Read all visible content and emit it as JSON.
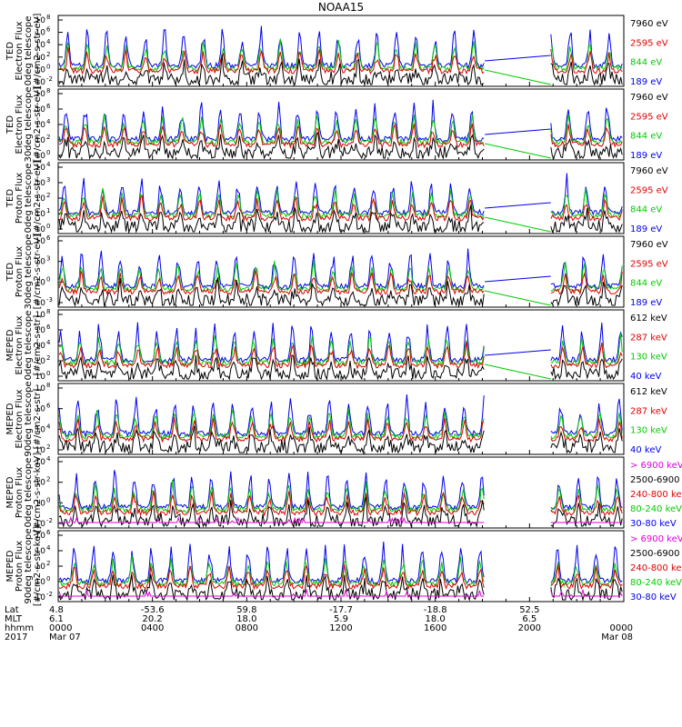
{
  "title": "NOAA15",
  "colors": {
    "blue": "#0000ee",
    "red": "#e00000",
    "green": "#00cc00",
    "black": "#000000",
    "magenta": "#e000e0"
  },
  "chart_data": [
    {
      "type": "line",
      "ylabel": [
        "TED",
        "Electron Flux",
        "0deg telescope",
        "[#/cm2-s-str-eV]"
      ],
      "ytick_exponents": [
        "8",
        "6",
        "4",
        "2",
        "0",
        "-2"
      ],
      "legend": [
        {
          "name": "7960 eV",
          "color": "black"
        },
        {
          "name": "2595 eV",
          "color": "red"
        },
        {
          "name": "844 eV",
          "color": "green"
        },
        {
          "name": "189 eV",
          "color": "blue"
        }
      ],
      "ylim": [
        "1e-2",
        "1e8"
      ],
      "base_level": 2,
      "baseline_link": true
    },
    {
      "type": "line",
      "ylabel": [
        "TED",
        "Electron Flux",
        "30deg telescope",
        "[#/cm2-s-str-eV]"
      ],
      "ytick_exponents": [
        "8",
        "6",
        "4",
        "2",
        "0"
      ],
      "legend": [
        {
          "name": "7960 eV",
          "color": "black"
        },
        {
          "name": "2595 eV",
          "color": "red"
        },
        {
          "name": "844 eV",
          "color": "green"
        },
        {
          "name": "189 eV",
          "color": "blue"
        }
      ],
      "ylim": [
        "1e0",
        "1e8"
      ],
      "base_level": 2,
      "baseline_link": true
    },
    {
      "type": "line",
      "ylabel": [
        "TED",
        "Proton Flux",
        "0deg telescope",
        "[#/cm2-s-str-eV]"
      ],
      "ytick_exponents": [
        "4",
        "3",
        "2",
        "1",
        "0"
      ],
      "legend": [
        {
          "name": "7960 eV",
          "color": "black"
        },
        {
          "name": "2595 eV",
          "color": "red"
        },
        {
          "name": "844 eV",
          "color": "green"
        },
        {
          "name": "189 eV",
          "color": "blue"
        }
      ],
      "ylim": [
        "1e0",
        "1e4"
      ],
      "base_level": 1.5,
      "baseline_link": true
    },
    {
      "type": "line",
      "ylabel": [
        "TED",
        "Proton Flux",
        "30deg telescope",
        "[#/cm2-s-str-eV]"
      ],
      "ytick_exponents": [
        "6",
        "3",
        "0",
        "-3"
      ],
      "legend": [
        {
          "name": "7960 eV",
          "color": "black"
        },
        {
          "name": "2595 eV",
          "color": "red"
        },
        {
          "name": "844 eV",
          "color": "green"
        },
        {
          "name": "189 eV",
          "color": "blue"
        }
      ],
      "ylim": [
        "1e-4",
        "1e6"
      ],
      "base_level": 2,
      "baseline_link": true
    },
    {
      "type": "line",
      "ylabel": [
        "MEPED",
        "Electron Flux",
        "0deg telescope",
        "[#/cm2-s-str]"
      ],
      "ytick_exponents": [
        "8",
        "6",
        "4",
        "2",
        "0"
      ],
      "legend": [
        {
          "name": "612 keV",
          "color": "black"
        },
        {
          "name": "287 keV",
          "color": "red"
        },
        {
          "name": "130 keV",
          "color": "green"
        },
        {
          "name": "40 keV",
          "color": "blue"
        }
      ],
      "ylim": [
        "1e0",
        "1e8"
      ],
      "base_level": 2,
      "baseline_link": true
    },
    {
      "type": "line",
      "ylabel": [
        "MEPED",
        "Electron Flux",
        "90deg telescope",
        "[#/cm2-s-str]"
      ],
      "ytick_exponents": [
        "8",
        "6",
        "4",
        "2"
      ],
      "legend": [
        {
          "name": "612 keV",
          "color": "black"
        },
        {
          "name": "287 keV",
          "color": "red"
        },
        {
          "name": "130 keV",
          "color": "green"
        },
        {
          "name": "40 keV",
          "color": "blue"
        }
      ],
      "ylim": [
        "1e2",
        "1e8"
      ],
      "base_level": 2,
      "baseline_link": false
    },
    {
      "type": "line",
      "ylabel": [
        "MEPED",
        "Proton Flux",
        "0deg telescope",
        "[#/cm2-s-str-keV]"
      ],
      "ytick_exponents": [
        "4",
        "2",
        "0",
        "-2"
      ],
      "legend": [
        {
          "name": "> 6900 keV",
          "color": "magenta"
        },
        {
          "name": "2500-6900",
          "color": "black"
        },
        {
          "name": "240-800 ke",
          "color": "red"
        },
        {
          "name": "80-240 keV",
          "color": "green"
        },
        {
          "name": "30-80 keV",
          "color": "blue"
        }
      ],
      "ylim": [
        "1e-2",
        "1e6"
      ],
      "base_level": 0,
      "baseline_link": false
    },
    {
      "type": "line",
      "ylabel": [
        "MEPED",
        "Proton Flux",
        "90deg telescope",
        "[#/cm2-s-str-keV]"
      ],
      "ytick_exponents": [
        "6",
        "4",
        "2",
        "0",
        "-2"
      ],
      "legend": [
        {
          "name": "> 6900 keV",
          "color": "magenta"
        },
        {
          "name": "2500-6900",
          "color": "black"
        },
        {
          "name": "240-800 ke",
          "color": "red"
        },
        {
          "name": "80-240 keV",
          "color": "green"
        },
        {
          "name": "30-80 keV",
          "color": "blue"
        }
      ],
      "ylim": [
        "1e-2",
        "1e6"
      ],
      "base_level": 0,
      "baseline_link": false
    }
  ],
  "footer": {
    "rows": [
      "Lat",
      "MLT",
      "hhmm",
      "2017"
    ],
    "columns": [
      {
        "values": [
          "4.8",
          "6.1",
          "0000",
          "Mar 07"
        ],
        "hour": 0
      },
      {
        "values": [
          "-53.6",
          "20.2",
          "0400",
          ""
        ],
        "hour": 4
      },
      {
        "values": [
          "59.8",
          "18.0",
          "0800",
          ""
        ],
        "hour": 8
      },
      {
        "values": [
          "-17.7",
          "5.9",
          "1200",
          ""
        ],
        "hour": 12
      },
      {
        "values": [
          "-18.8",
          "18.0",
          "1600",
          ""
        ],
        "hour": 16
      },
      {
        "values": [
          "52.5",
          "6.5",
          "2000",
          ""
        ],
        "hour": 20
      },
      {
        "values": [
          "",
          "",
          "0000",
          "Mar 08"
        ],
        "hour": 24
      }
    ]
  },
  "data_gap_hours": [
    18.1,
    20.9
  ]
}
